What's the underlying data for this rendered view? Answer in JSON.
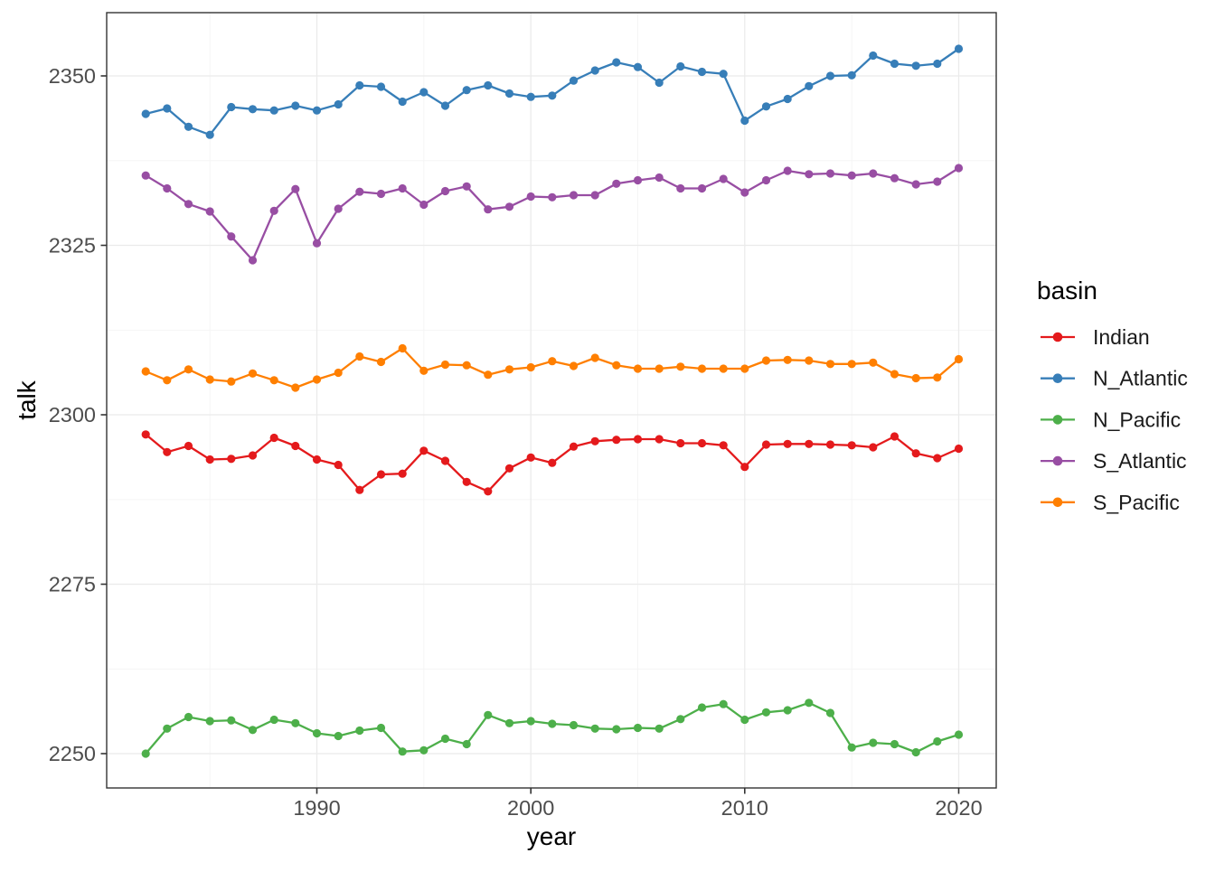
{
  "chart_data": {
    "type": "line",
    "title": "",
    "xlabel": "year",
    "ylabel": "talk",
    "legend_title": "basin",
    "legend_position": "right",
    "grid": true,
    "x_ticks": [
      1990,
      2000,
      2010,
      2020
    ],
    "x_minor_ticks": [
      1985,
      1995,
      2005,
      2015
    ],
    "y_ticks": [
      2250,
      2275,
      2300,
      2325,
      2350
    ],
    "y_minor_ticks": [
      2262.5,
      2287.5,
      2312.5,
      2337.5
    ],
    "x_range": [
      1980.2,
      2021.8
    ],
    "y_range": [
      2245.1,
      2359.3
    ],
    "x": [
      1982,
      1983,
      1984,
      1985,
      1986,
      1987,
      1988,
      1989,
      1990,
      1991,
      1992,
      1993,
      1994,
      1995,
      1996,
      1997,
      1998,
      1999,
      2000,
      2001,
      2002,
      2003,
      2004,
      2005,
      2006,
      2007,
      2008,
      2009,
      2010,
      2011,
      2012,
      2013,
      2014,
      2015,
      2016,
      2017,
      2018,
      2019,
      2020
    ],
    "series": [
      {
        "name": "Indian",
        "color": "#E41A1C",
        "values": [
          2297.1,
          2294.5,
          2295.4,
          2293.4,
          2293.5,
          2294.0,
          2296.6,
          2295.4,
          2293.4,
          2292.6,
          2288.9,
          2291.2,
          2291.3,
          2294.7,
          2293.2,
          2290.1,
          2288.7,
          2292.1,
          2293.7,
          2292.9,
          2295.3,
          2296.1,
          2296.3,
          2296.4,
          2296.4,
          2295.8,
          2295.8,
          2295.5,
          2292.3,
          2295.6,
          2295.7,
          2295.7,
          2295.6,
          2295.5,
          2295.2,
          2296.8,
          2294.3,
          2293.6,
          2295.0
        ]
      },
      {
        "name": "N_Atlantic",
        "color": "#377EB8",
        "values": [
          2344.4,
          2345.2,
          2342.5,
          2341.3,
          2345.4,
          2345.1,
          2344.9,
          2345.6,
          2344.9,
          2345.8,
          2348.6,
          2348.4,
          2346.2,
          2347.6,
          2345.6,
          2347.9,
          2348.6,
          2347.4,
          2346.9,
          2347.1,
          2349.3,
          2350.8,
          2352.0,
          2351.3,
          2349.0,
          2351.4,
          2350.6,
          2350.3,
          2343.4,
          2345.5,
          2346.6,
          2348.5,
          2350.0,
          2350.1,
          2353.0,
          2351.8,
          2351.5,
          2351.8,
          2354.0
        ]
      },
      {
        "name": "N_Pacific",
        "color": "#4DAF4A",
        "values": [
          2250.0,
          2253.7,
          2255.4,
          2254.8,
          2254.9,
          2253.5,
          2255.0,
          2254.5,
          2253.0,
          2252.6,
          2253.4,
          2253.8,
          2250.3,
          2250.5,
          2252.2,
          2251.4,
          2255.7,
          2254.5,
          2254.8,
          2254.4,
          2254.2,
          2253.7,
          2253.6,
          2253.8,
          2253.7,
          2255.1,
          2256.8,
          2257.3,
          2255.0,
          2256.1,
          2256.4,
          2257.5,
          2256.0,
          2250.9,
          2251.6,
          2251.4,
          2250.2,
          2251.8,
          2252.8
        ]
      },
      {
        "name": "S_Atlantic",
        "color": "#984EA3",
        "values": [
          2335.3,
          2333.4,
          2331.1,
          2330.0,
          2326.3,
          2322.8,
          2330.1,
          2333.3,
          2325.3,
          2330.4,
          2332.9,
          2332.6,
          2333.4,
          2331.0,
          2333.0,
          2333.7,
          2330.3,
          2330.7,
          2332.2,
          2332.1,
          2332.4,
          2332.4,
          2334.1,
          2334.6,
          2335.0,
          2333.4,
          2333.4,
          2334.8,
          2332.8,
          2334.6,
          2336.0,
          2335.5,
          2335.6,
          2335.3,
          2335.6,
          2334.9,
          2334.0,
          2334.4,
          2336.4
        ]
      },
      {
        "name": "S_Pacific",
        "color": "#FF7F00",
        "values": [
          2306.4,
          2305.1,
          2306.7,
          2305.2,
          2304.9,
          2306.1,
          2305.1,
          2304.0,
          2305.2,
          2306.2,
          2308.6,
          2307.8,
          2309.8,
          2306.5,
          2307.4,
          2307.3,
          2305.9,
          2306.7,
          2307.0,
          2307.9,
          2307.2,
          2308.4,
          2307.3,
          2306.8,
          2306.8,
          2307.1,
          2306.8,
          2306.8,
          2306.8,
          2308.0,
          2308.1,
          2308.0,
          2307.5,
          2307.5,
          2307.7,
          2306.0,
          2305.4,
          2305.5,
          2308.2
        ]
      }
    ]
  },
  "style": {
    "background": "#FFFFFF",
    "grid_major_color": "#EBEBEB",
    "grid_minor_color": "#F4F4F4",
    "panel_border_color": "#333333",
    "tick_color": "#333333",
    "tick_label_color": "#4D4D4D",
    "title_color": "#000000",
    "legend_label_color": "#1A1A1A"
  }
}
